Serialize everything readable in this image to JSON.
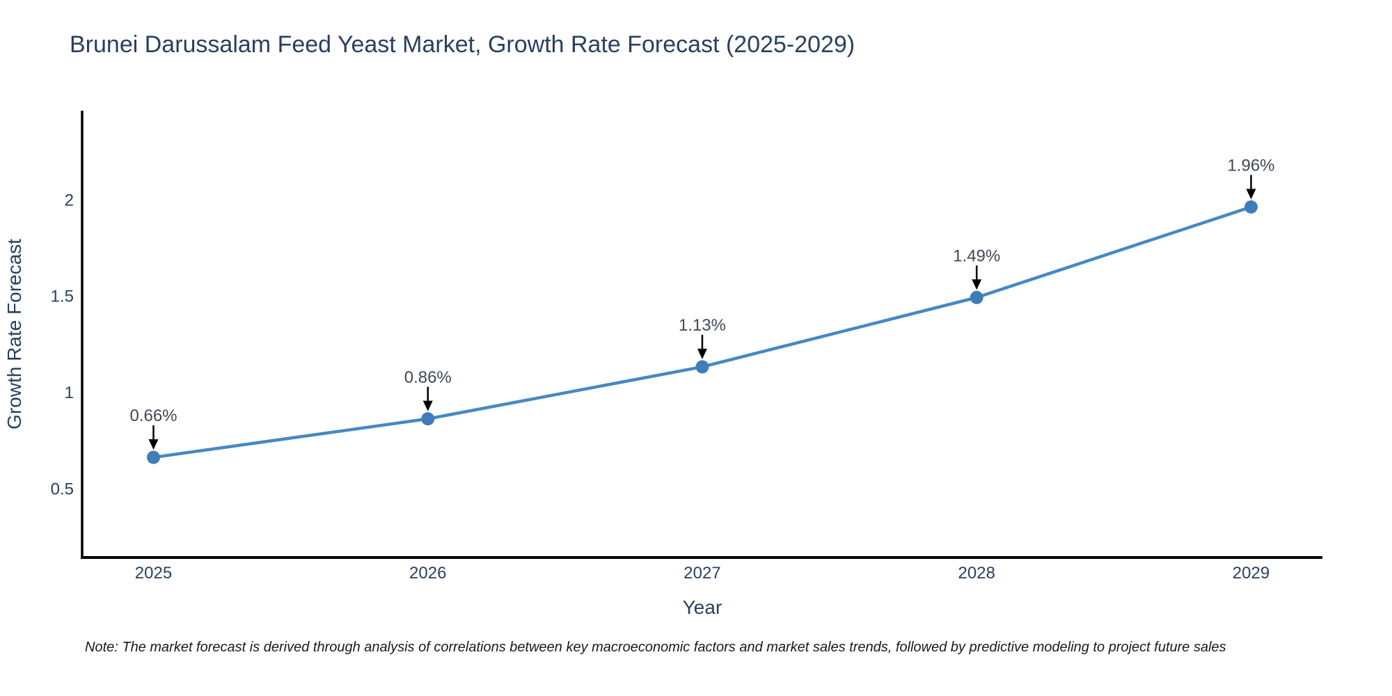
{
  "title": "Brunei Darussalam Feed Yeast Market, Growth Rate Forecast (2025-2029)",
  "note": "Note: The market forecast is derived through analysis of correlations between key macroeconomic factors and market sales trends, followed by predictive modeling to project future sales",
  "chart_data": {
    "type": "line",
    "title": "Brunei Darussalam Feed Yeast Market, Growth Rate Forecast (2025-2029)",
    "xlabel": "Year",
    "ylabel": "Growth Rate Forecast",
    "x": [
      2025,
      2026,
      2027,
      2028,
      2029
    ],
    "series": [
      {
        "name": "Growth Rate Forecast",
        "values": [
          0.66,
          0.86,
          1.13,
          1.49,
          1.96
        ],
        "point_labels": [
          "0.66%",
          "0.86%",
          "1.13%",
          "1.49%",
          "1.96%"
        ]
      }
    ],
    "xticks": [
      2025,
      2026,
      2027,
      2028,
      2029
    ],
    "yticks": [
      0.5,
      1,
      1.5,
      2
    ],
    "xlim": [
      2024.74,
      2029.26
    ],
    "ylim": [
      0.14,
      2.46
    ],
    "grid": false,
    "legend": false,
    "annotation_arrows": true,
    "colors": {
      "line": "#4688c3",
      "marker": "#3e7db9",
      "axis": "#000000",
      "chart_text": "#2a3f5f",
      "annotation_text": "#414854",
      "arrow": "#000000"
    }
  }
}
